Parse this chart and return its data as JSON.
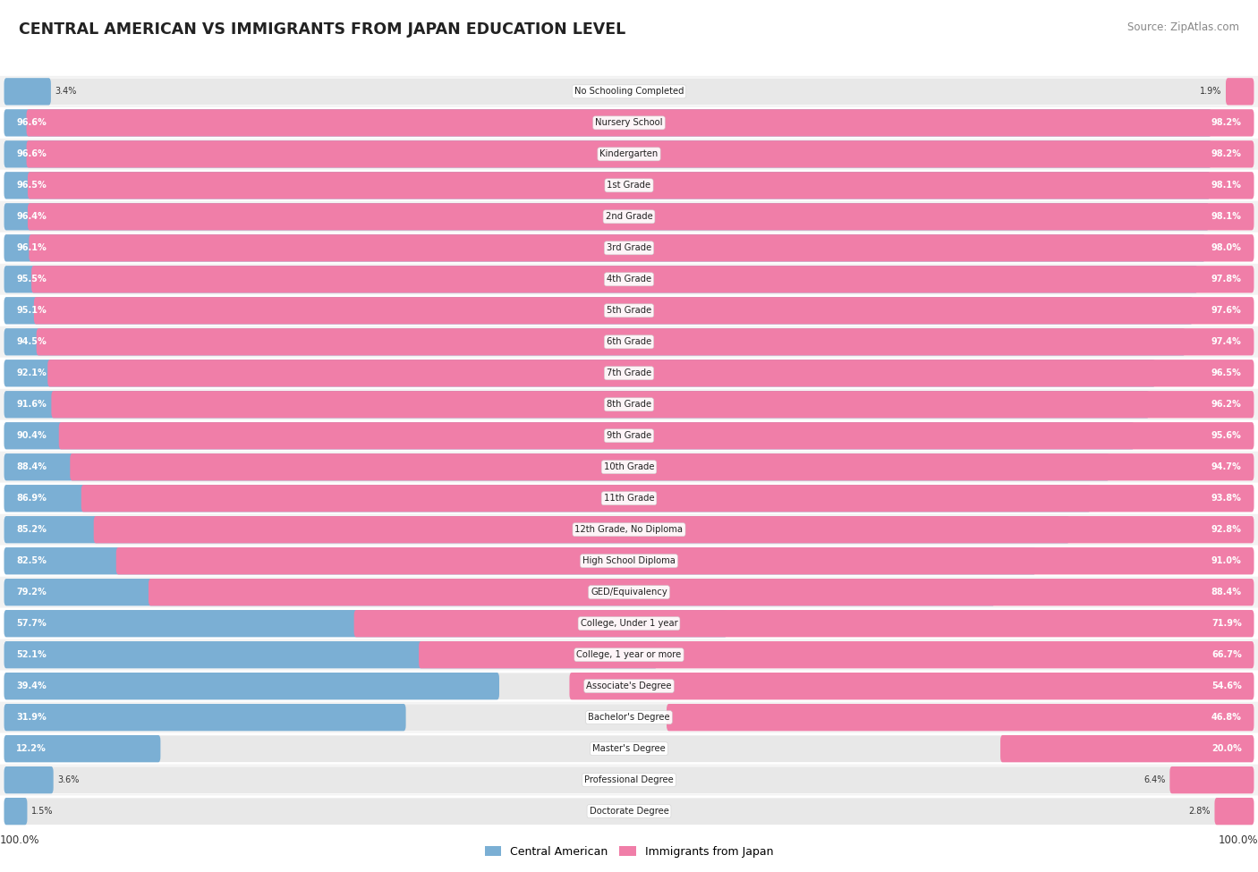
{
  "title": "CENTRAL AMERICAN VS IMMIGRANTS FROM JAPAN EDUCATION LEVEL",
  "source": "Source: ZipAtlas.com",
  "categories": [
    "No Schooling Completed",
    "Nursery School",
    "Kindergarten",
    "1st Grade",
    "2nd Grade",
    "3rd Grade",
    "4th Grade",
    "5th Grade",
    "6th Grade",
    "7th Grade",
    "8th Grade",
    "9th Grade",
    "10th Grade",
    "11th Grade",
    "12th Grade, No Diploma",
    "High School Diploma",
    "GED/Equivalency",
    "College, Under 1 year",
    "College, 1 year or more",
    "Associate's Degree",
    "Bachelor's Degree",
    "Master's Degree",
    "Professional Degree",
    "Doctorate Degree"
  ],
  "central_american": [
    3.4,
    96.6,
    96.6,
    96.5,
    96.4,
    96.1,
    95.5,
    95.1,
    94.5,
    92.1,
    91.6,
    90.4,
    88.4,
    86.9,
    85.2,
    82.5,
    79.2,
    57.7,
    52.1,
    39.4,
    31.9,
    12.2,
    3.6,
    1.5
  ],
  "japan": [
    1.9,
    98.2,
    98.2,
    98.1,
    98.1,
    98.0,
    97.8,
    97.6,
    97.4,
    96.5,
    96.2,
    95.6,
    94.7,
    93.8,
    92.8,
    91.0,
    88.4,
    71.9,
    66.7,
    54.6,
    46.8,
    20.0,
    6.4,
    2.8
  ],
  "blue_color": "#7BAFD4",
  "pink_color": "#F07EA8",
  "bar_bg_color": "#E8E8E8",
  "bg_color": "#FFFFFF",
  "text_color": "#333333",
  "legend_ca": "Central American",
  "legend_jp": "Immigrants from Japan",
  "row_colors": [
    "#F2F2F2",
    "#FFFFFF"
  ]
}
